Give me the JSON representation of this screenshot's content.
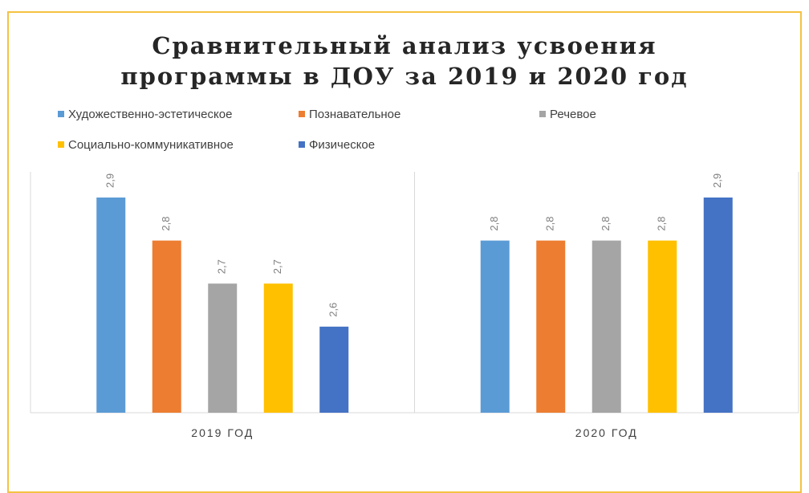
{
  "chart_data": {
    "type": "bar",
    "title": "Сравнительный анализ усвоения программы в ДОУ за 2019 и 2020 год",
    "title_lines": [
      "Сравнительный анализ усвоения",
      "программы в ДОУ за 2019 и 2020 год"
    ],
    "categories": [
      "2019 ГОД",
      "2020 ГОД"
    ],
    "series": [
      {
        "name": "Художественно-эстетическое",
        "color": "#5b9bd5",
        "values": [
          2.9,
          2.8
        ],
        "labels": [
          "2,9",
          "2,8"
        ]
      },
      {
        "name": "Познавательное",
        "color": "#ed7d31",
        "values": [
          2.8,
          2.8
        ],
        "labels": [
          "2,8",
          "2,8"
        ]
      },
      {
        "name": "Речевое",
        "color": "#a5a5a5",
        "values": [
          2.7,
          2.8
        ],
        "labels": [
          "2,7",
          "2,8"
        ]
      },
      {
        "name": "Социально-коммуникативное",
        "color": "#ffc000",
        "values": [
          2.7,
          2.8
        ],
        "labels": [
          "2,7",
          "2,8"
        ]
      },
      {
        "name": "Физическое",
        "color": "#4472c4",
        "values": [
          2.6,
          2.9
        ],
        "labels": [
          "2,6",
          "2,9"
        ]
      }
    ],
    "ylim": [
      2.4,
      2.9
    ],
    "grid": false,
    "legend": "top-left",
    "data_labels": true
  },
  "colors": {
    "frame_border": "#f5c242",
    "axis": "#d9d9d9",
    "label_text": "#7f7f7f",
    "category_text": "#404040"
  }
}
